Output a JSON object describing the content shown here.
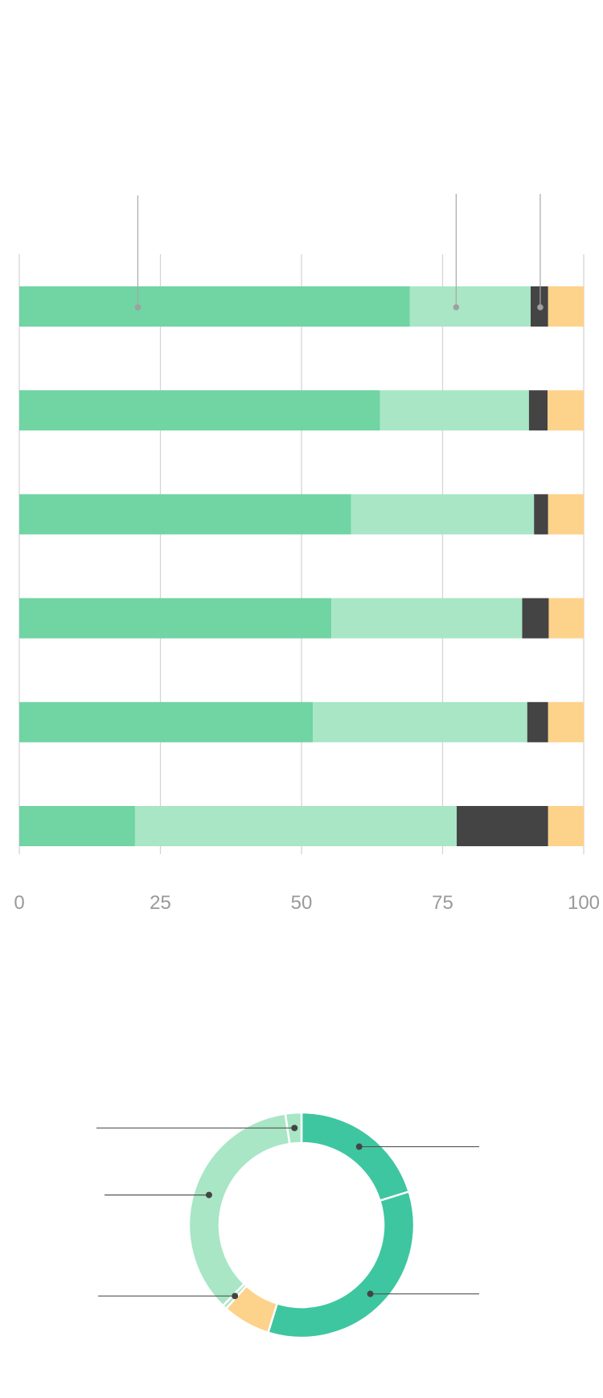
{
  "chart_data": [
    {
      "type": "bar",
      "orientation": "horizontal",
      "stacked": true,
      "categories": [
        "",
        "",
        "",
        "",
        "",
        ""
      ],
      "series": [
        {
          "values": [
            69.2,
            63.9,
            58.8,
            55.3,
            52.0,
            20.5
          ],
          "color": "#70d4a3"
        },
        {
          "values": [
            21.4,
            26.4,
            32.4,
            33.8,
            38.0,
            57.0
          ],
          "color": "#a8e6c5"
        },
        {
          "values": [
            3.1,
            3.3,
            2.5,
            4.7,
            3.7,
            16.2
          ],
          "color": "#444444"
        },
        {
          "values": [
            6.3,
            6.4,
            6.3,
            6.2,
            6.3,
            6.3
          ],
          "color": "#fdd28a"
        }
      ],
      "xlim": [
        0,
        100
      ],
      "xticks": [
        "0",
        "25",
        "50",
        "75",
        "100"
      ],
      "grid": true,
      "callout_markers": [
        {
          "value": 21,
          "row": 0
        },
        {
          "value": 77.4,
          "row": 0
        },
        {
          "value": 92.3,
          "row": 0
        }
      ],
      "title": "",
      "xlabel": "",
      "ylabel": ""
    },
    {
      "type": "pie",
      "donut": true,
      "slices": [
        {
          "value": 20.2,
          "color": "#3ec6a0"
        },
        {
          "value": 34.6,
          "color": "#3ec6a0"
        },
        {
          "value": 6.9,
          "color": "#fdd28a"
        },
        {
          "value": 0.6,
          "color": "#a8e6c5"
        },
        {
          "value": 35.4,
          "color": "#a8e6c5"
        },
        {
          "value": 2.3,
          "color": "#a8e6c5"
        }
      ],
      "leader_lines": true,
      "title": ""
    }
  ]
}
